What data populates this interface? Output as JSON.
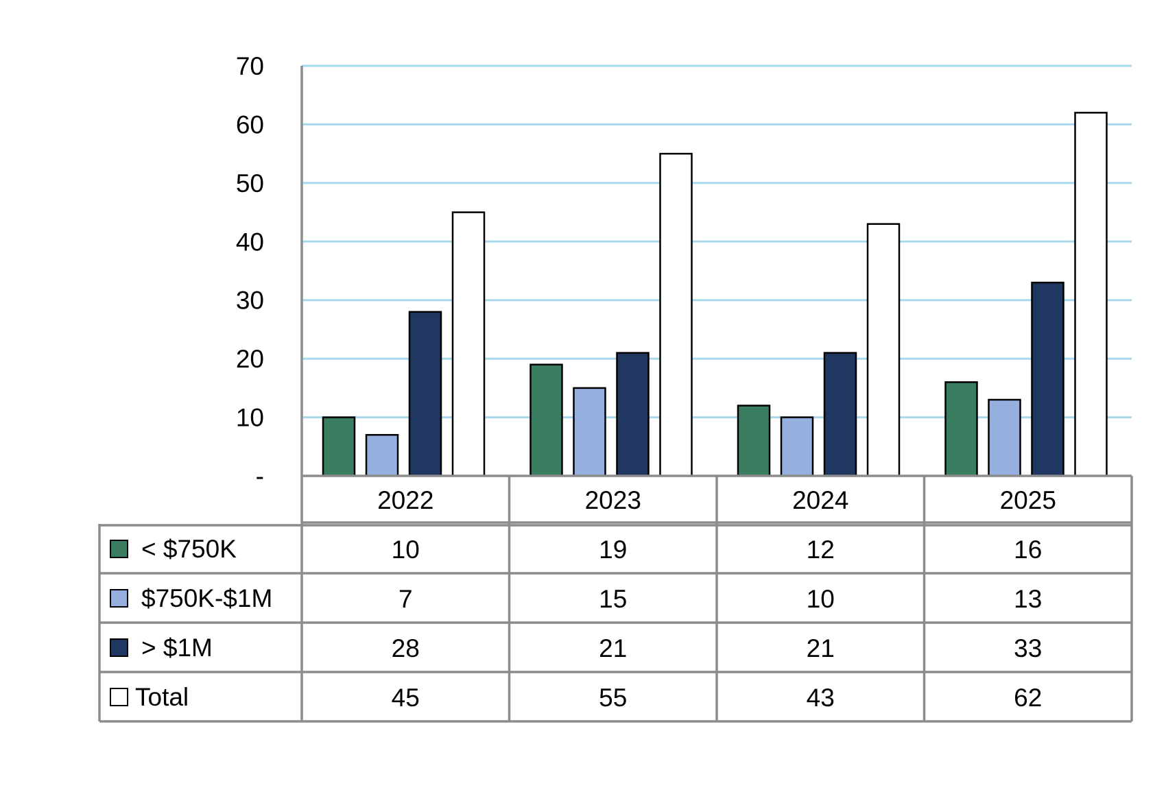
{
  "chart_data": {
    "type": "bar",
    "title": "",
    "xlabel": "",
    "ylabel": "",
    "ylim": [
      0,
      70
    ],
    "yticks": [
      0,
      10,
      20,
      30,
      40,
      50,
      60,
      70
    ],
    "ytick_labels": [
      "-",
      "10",
      "20",
      "30",
      "40",
      "50",
      "60",
      "70"
    ],
    "grid": true,
    "categories": [
      "2022",
      "2023",
      "2024",
      "2025"
    ],
    "series": [
      {
        "name": "< $750K",
        "color": "#3a7d60",
        "values": [
          10,
          19,
          12,
          16
        ]
      },
      {
        "name": "$750K-$1M",
        "color": "#95b0de",
        "values": [
          7,
          15,
          10,
          13
        ]
      },
      {
        "name": "> $1M",
        "color": "#1f3761",
        "values": [
          28,
          21,
          21,
          33
        ]
      },
      {
        "name": "Total",
        "color": "#ffffff",
        "values": [
          45,
          55,
          43,
          62
        ]
      }
    ],
    "legend": "data-table-left",
    "data_table": true,
    "colors": {
      "gridline": "#a8d8ec",
      "axis": "#8c8c8c",
      "bar_outline": "#000000"
    }
  }
}
